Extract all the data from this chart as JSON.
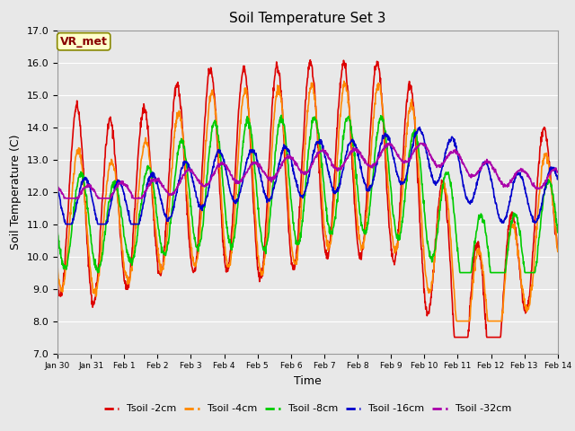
{
  "title": "Soil Temperature Set 3",
  "xlabel": "Time",
  "ylabel": "Soil Temperature (C)",
  "ylim": [
    7.0,
    17.0
  ],
  "yticks": [
    7.0,
    8.0,
    9.0,
    10.0,
    11.0,
    12.0,
    13.0,
    14.0,
    15.0,
    16.0,
    17.0
  ],
  "xtick_labels": [
    "Jan 30",
    "Jan 31",
    "Feb 1",
    "Feb 2",
    "Feb 3",
    "Feb 4",
    "Feb 5",
    "Feb 6",
    "Feb 7",
    "Feb 8",
    "Feb 9",
    "Feb 10",
    "Feb 11",
    "Feb 12",
    "Feb 13",
    "Feb 14"
  ],
  "series_colors": {
    "Tsoil -2cm": "#dd0000",
    "Tsoil -4cm": "#ff8800",
    "Tsoil -8cm": "#00cc00",
    "Tsoil -16cm": "#0000cc",
    "Tsoil -32cm": "#aa00aa"
  },
  "lw": 1.2,
  "plot_bg_color": "#e8e8e8",
  "grid_color": "#ffffff",
  "annotation_text": "VR_met",
  "annotation_color": "#880000",
  "annotation_bg": "#ffffcc",
  "annotation_border": "#888800",
  "title_fontsize": 11,
  "label_fontsize": 9,
  "tick_fontsize": 8,
  "legend_fontsize": 8
}
